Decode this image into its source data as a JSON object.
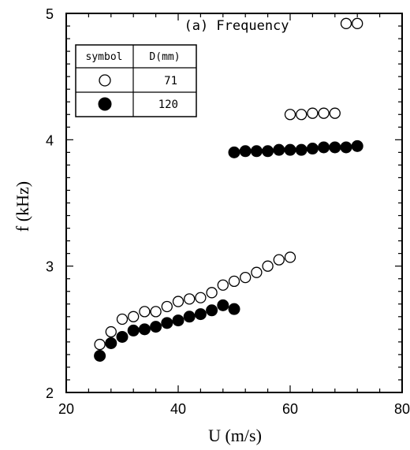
{
  "chart_data": {
    "type": "scatter",
    "title": "(a) Frequency",
    "xlabel": "U (m/s)",
    "ylabel": "f (kHz)",
    "xlim": [
      20,
      80
    ],
    "ylim": [
      2,
      5
    ],
    "x_ticks": [
      "20",
      "40",
      "60",
      "80"
    ],
    "y_ticks": [
      "2",
      "3",
      "4",
      "5"
    ],
    "grid": false,
    "legend": {
      "placement": "top-left",
      "header_symbol": "symbol",
      "header_d": "D(mm)",
      "rows": [
        {
          "marker": "open-circle",
          "value": "71"
        },
        {
          "marker": "filled-circle",
          "value": "120"
        }
      ]
    },
    "series": [
      {
        "name": "71",
        "marker": "open-circle",
        "points": [
          [
            26,
            2.38
          ],
          [
            28,
            2.48
          ],
          [
            30,
            2.58
          ],
          [
            32,
            2.6
          ],
          [
            34,
            2.64
          ],
          [
            36,
            2.64
          ],
          [
            38,
            2.68
          ],
          [
            40,
            2.72
          ],
          [
            42,
            2.74
          ],
          [
            44,
            2.75
          ],
          [
            46,
            2.79
          ],
          [
            48,
            2.85
          ],
          [
            50,
            2.88
          ],
          [
            52,
            2.91
          ],
          [
            54,
            2.95
          ],
          [
            56,
            3.0
          ],
          [
            58,
            3.05
          ],
          [
            60,
            3.07
          ],
          [
            60,
            4.2
          ],
          [
            62,
            4.2
          ],
          [
            64,
            4.21
          ],
          [
            66,
            4.21
          ],
          [
            68,
            4.21
          ],
          [
            70,
            4.92
          ],
          [
            72,
            4.92
          ]
        ]
      },
      {
        "name": "120",
        "marker": "filled-circle",
        "points": [
          [
            26,
            2.29
          ],
          [
            28,
            2.39
          ],
          [
            30,
            2.44
          ],
          [
            32,
            2.49
          ],
          [
            34,
            2.5
          ],
          [
            36,
            2.52
          ],
          [
            38,
            2.55
          ],
          [
            40,
            2.57
          ],
          [
            42,
            2.6
          ],
          [
            44,
            2.62
          ],
          [
            46,
            2.65
          ],
          [
            48,
            2.69
          ],
          [
            50,
            2.66
          ],
          [
            50,
            3.9
          ],
          [
            52,
            3.91
          ],
          [
            54,
            3.91
          ],
          [
            56,
            3.91
          ],
          [
            58,
            3.92
          ],
          [
            60,
            3.92
          ],
          [
            62,
            3.92
          ],
          [
            64,
            3.93
          ],
          [
            66,
            3.94
          ],
          [
            68,
            3.94
          ],
          [
            70,
            3.94
          ],
          [
            72,
            3.95
          ]
        ]
      }
    ]
  }
}
